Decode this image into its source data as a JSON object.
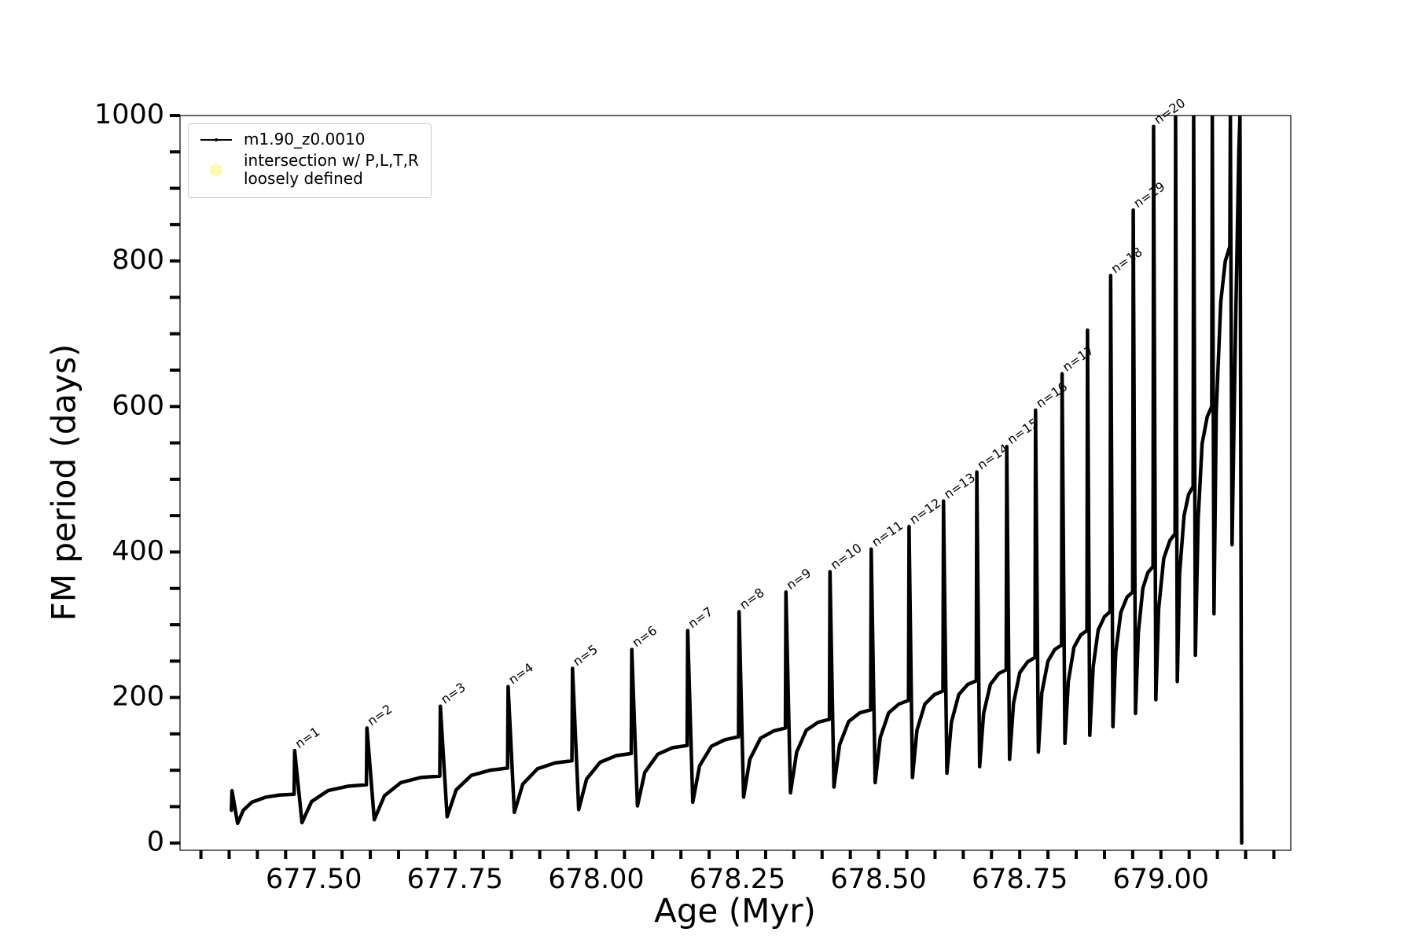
{
  "chart_data": {
    "type": "line",
    "x_label": "Age (Myr)",
    "y_label": "FM period (days)",
    "xlim": [
      677.263,
      679.23
    ],
    "ylim": [
      -10,
      1000
    ],
    "xticks": [
      {
        "value": 677.5,
        "label": "677.50"
      },
      {
        "value": 677.75,
        "label": "677.75"
      },
      {
        "value": 678.0,
        "label": "678.00"
      },
      {
        "value": 678.25,
        "label": "678.25"
      },
      {
        "value": 678.5,
        "label": "678.50"
      },
      {
        "value": 678.75,
        "label": "678.75"
      },
      {
        "value": 679.0,
        "label": "679.00"
      }
    ],
    "xminorticks": [
      677.3,
      677.35,
      677.4,
      677.45,
      677.55,
      677.6,
      677.65,
      677.7,
      677.8,
      677.85,
      677.9,
      677.95,
      678.05,
      678.1,
      678.15,
      678.2,
      678.3,
      678.35,
      678.4,
      678.45,
      678.55,
      678.6,
      678.65,
      678.7,
      678.8,
      678.85,
      678.9,
      678.95,
      679.05,
      679.1,
      679.15,
      679.2
    ],
    "yticks": [
      0,
      200,
      400,
      600,
      800,
      1000
    ],
    "yminorticks": [
      50,
      100,
      150,
      250,
      300,
      350,
      450,
      500,
      550,
      650,
      700,
      750,
      850,
      900,
      950
    ],
    "legend": "upper left",
    "series": [
      {
        "name": "m1.90_z0.0010",
        "color": "#000000",
        "x": [
          677.354,
          677.355,
          677.365,
          677.375,
          677.39,
          677.415,
          677.44,
          677.465,
          677.466,
          677.479,
          677.496,
          677.525,
          677.56,
          677.593,
          677.594,
          677.607,
          677.625,
          677.654,
          677.689,
          677.723,
          677.724,
          677.736,
          677.752,
          677.779,
          677.812,
          677.843,
          677.844,
          677.855,
          677.87,
          677.896,
          677.927,
          677.957,
          677.958,
          677.969,
          677.983,
          678.007,
          678.035,
          678.062,
          678.063,
          678.073,
          678.086,
          678.109,
          678.135,
          678.161,
          678.162,
          678.171,
          678.183,
          678.204,
          678.228,
          678.252,
          678.253,
          678.261,
          678.272,
          678.291,
          678.314,
          678.335,
          678.336,
          678.344,
          678.355,
          678.372,
          678.393,
          678.413,
          678.414,
          678.421,
          678.431,
          678.447,
          678.467,
          678.486,
          678.487,
          678.494,
          678.503,
          678.518,
          678.536,
          678.553,
          678.554,
          678.56,
          678.568,
          678.582,
          678.599,
          678.614,
          678.615,
          678.621,
          678.629,
          678.642,
          678.658,
          678.673,
          678.674,
          678.679,
          678.686,
          678.698,
          678.713,
          678.726,
          678.727,
          678.732,
          678.739,
          678.75,
          678.764,
          678.777,
          678.778,
          678.783,
          678.789,
          678.8,
          678.812,
          678.824,
          678.825,
          678.83,
          678.836,
          678.846,
          678.858,
          678.869,
          678.87,
          678.874,
          678.88,
          678.889,
          678.9,
          678.91,
          678.911,
          678.915,
          678.92,
          678.929,
          678.94,
          678.95,
          678.951,
          678.955,
          678.96,
          678.968,
          678.977,
          678.986,
          678.987,
          678.991,
          678.996,
          679.005,
          679.016,
          679.025,
          679.026,
          679.029,
          679.033,
          679.041,
          679.049,
          679.057,
          679.058,
          679.061,
          679.066,
          679.073,
          679.082,
          679.09,
          679.091,
          679.094,
          679.098,
          679.106,
          679.114,
          679.122,
          679.123,
          679.126,
          679.132,
          679.138,
          679.14,
          679.143
        ],
        "values": [
          45,
          72,
          27,
          45,
          56,
          63,
          66,
          67,
          127,
          28,
          57,
          72,
          78,
          80,
          158,
          32,
          65,
          83,
          90,
          92,
          188,
          36,
          73,
          93,
          100,
          103,
          215,
          42,
          81,
          102,
          110,
          113,
          240,
          46,
          88,
          111,
          120,
          123,
          266,
          51,
          97,
          122,
          131,
          134,
          292,
          56,
          106,
          133,
          142,
          146,
          318,
          63,
          115,
          144,
          154,
          158,
          345,
          69,
          125,
          155,
          166,
          170,
          373,
          77,
          135,
          167,
          179,
          183,
          404,
          83,
          145,
          179,
          191,
          196,
          435,
          90,
          155,
          191,
          204,
          209,
          470,
          96,
          166,
          204,
          218,
          223,
          510,
          105,
          178,
          218,
          233,
          238,
          545,
          115,
          192,
          234,
          249,
          255,
          595,
          125,
          206,
          250,
          266,
          272,
          645,
          137,
          222,
          269,
          286,
          292,
          705,
          148,
          242,
          293,
          311,
          318,
          780,
          160,
          262,
          317,
          338,
          345,
          870,
          178,
          289,
          350,
          372,
          380,
          985,
          197,
          322,
          391,
          416,
          425,
          1000,
          222,
          369,
          450,
          479,
          490,
          1000,
          258,
          446,
          549,
          586,
          600,
          1000,
          315,
          593,
          744,
          800,
          820,
          1000,
          410,
          700,
          950,
          1000,
          0
        ]
      },
      {
        "name": "intersection w/ P,L,T,R\nloosely defined",
        "color": "#fbfbb0",
        "x": [],
        "values": []
      }
    ],
    "annotations": [
      {
        "text": "n=1",
        "x": 677.466,
        "y": 127
      },
      {
        "text": "n=2",
        "x": 677.594,
        "y": 158
      },
      {
        "text": "n=3",
        "x": 677.724,
        "y": 188
      },
      {
        "text": "n=4",
        "x": 677.844,
        "y": 215
      },
      {
        "text": "n=5",
        "x": 677.958,
        "y": 240
      },
      {
        "text": "n=6",
        "x": 678.063,
        "y": 266
      },
      {
        "text": "n=7",
        "x": 678.162,
        "y": 292
      },
      {
        "text": "n=8",
        "x": 678.253,
        "y": 318
      },
      {
        "text": "n=9",
        "x": 678.336,
        "y": 345
      },
      {
        "text": "n=10",
        "x": 678.414,
        "y": 373
      },
      {
        "text": "n=11",
        "x": 678.487,
        "y": 404
      },
      {
        "text": "n=12",
        "x": 678.554,
        "y": 435
      },
      {
        "text": "n=13",
        "x": 678.615,
        "y": 470
      },
      {
        "text": "n=14",
        "x": 678.674,
        "y": 510
      },
      {
        "text": "n=15",
        "x": 678.727,
        "y": 545
      },
      {
        "text": "n=16",
        "x": 678.778,
        "y": 595
      },
      {
        "text": "n=17",
        "x": 678.825,
        "y": 645
      },
      {
        "text": "n=18",
        "x": 678.911,
        "y": 780
      },
      {
        "text": "n=19",
        "x": 678.951,
        "y": 870
      },
      {
        "text": "n=20",
        "x": 678.987,
        "y": 985
      }
    ]
  }
}
